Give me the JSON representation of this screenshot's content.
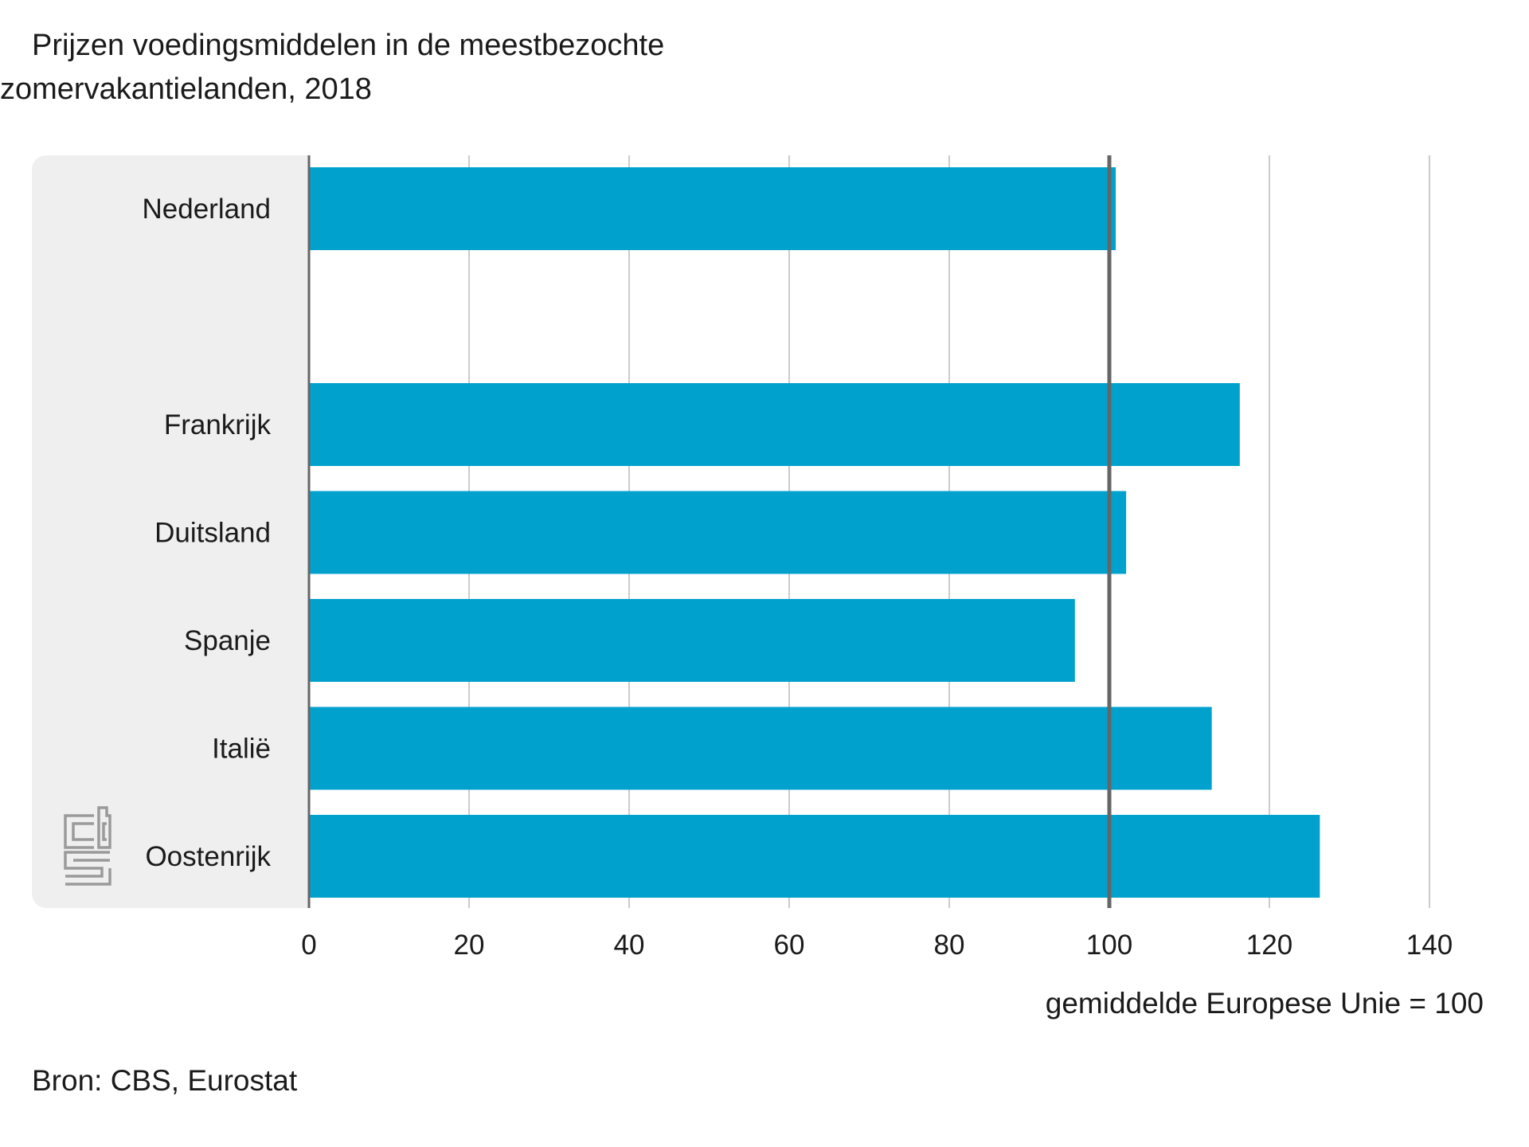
{
  "chart_data": {
    "type": "bar",
    "orientation": "horizontal",
    "title_line1": "Prijzen voedingsmiddelen in de meestbezochte",
    "title_line2": "zomervakantielanden, 2018",
    "categories": [
      "Nederland",
      "",
      "Frankrijk",
      "Duitsland",
      "Spanje",
      "Italië",
      "Oostenrijk"
    ],
    "values": [
      100.8,
      null,
      116.3,
      102.1,
      95.7,
      112.8,
      126.3
    ],
    "xlim": [
      0,
      140
    ],
    "xticks": [
      "0",
      "20",
      "40",
      "60",
      "80",
      "100",
      "120",
      "140"
    ],
    "reference_line": 100,
    "xlabel": "gemiddelde Europese Unie = 100",
    "grid": true,
    "source": "Bron: CBS, Eurostat"
  },
  "colors": {
    "bar": "#00a1cd",
    "label_panel": "#efefef",
    "grid": "#cccccc",
    "axis": "#666666",
    "logo": "#9a9a9a"
  },
  "icons": {
    "logo": "cbs-logo-icon"
  }
}
